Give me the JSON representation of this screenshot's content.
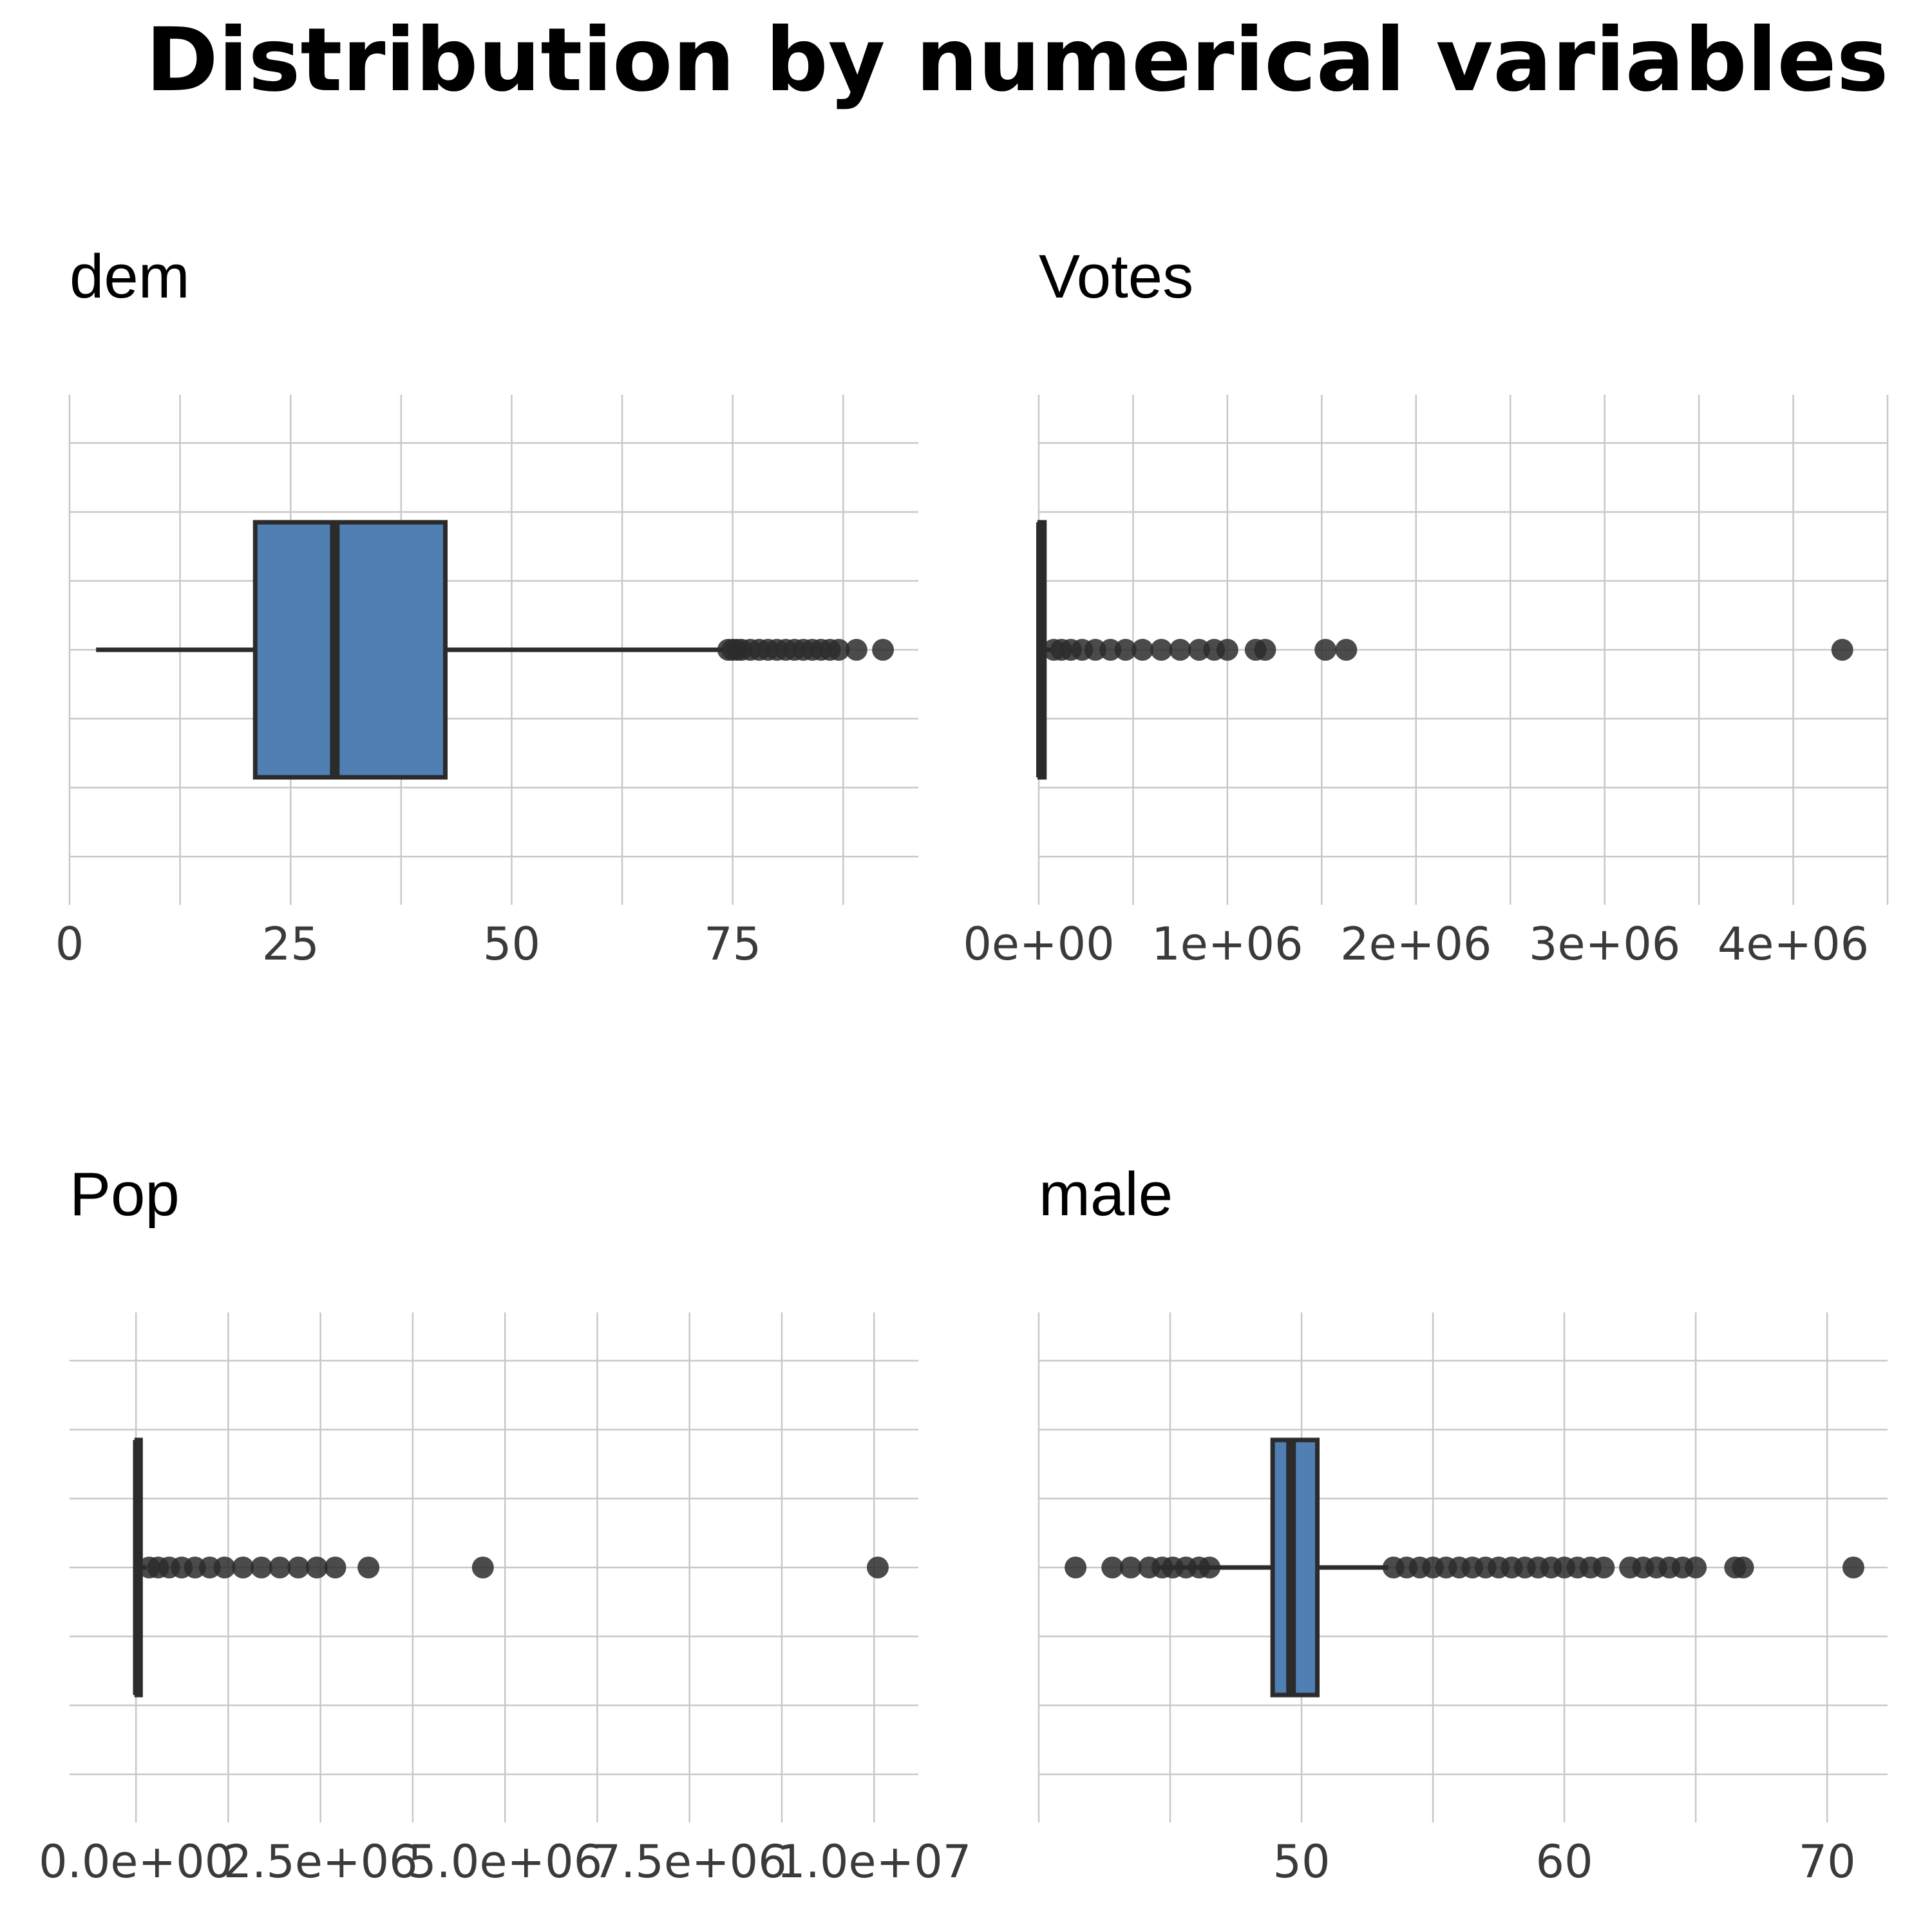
{
  "title": "Distribution by numerical variables",
  "chart_data": [
    {
      "type": "boxplot",
      "title": "dem",
      "xlim": [
        0,
        96
      ],
      "xticks": [
        0,
        25,
        50,
        75
      ],
      "xtick_labels": [
        "0",
        "25",
        "50",
        "75"
      ],
      "box": {
        "whisker_low": 3,
        "q1": 21,
        "median": 30,
        "q3": 42.5,
        "whisker_high": 74
      },
      "outliers": [
        74.5,
        75,
        75.5,
        76,
        77,
        78,
        79,
        80,
        81,
        82,
        83,
        84,
        85,
        86,
        87,
        89,
        92
      ]
    },
    {
      "type": "boxplot",
      "title": "Votes",
      "xlim": [
        0,
        4500000
      ],
      "xticks": [
        0,
        1000000,
        2000000,
        3000000,
        4000000
      ],
      "xtick_labels": [
        "0e+00",
        "1e+06",
        "2e+06",
        "3e+06",
        "4e+06"
      ],
      "box": {
        "whisker_low": 0,
        "q1": 5000,
        "median": 12000,
        "q3": 30000,
        "whisker_high": 70000
      },
      "outliers": [
        80000,
        120000,
        170000,
        230000,
        300000,
        380000,
        460000,
        550000,
        650000,
        750000,
        850000,
        930000,
        1000000,
        1150000,
        1200000,
        1520000,
        1630000,
        4260000
      ]
    },
    {
      "type": "boxplot",
      "title": "Pop",
      "xlim": [
        -900000,
        10600000
      ],
      "xticks": [
        0,
        2500000,
        5000000,
        7500000,
        10000000
      ],
      "xtick_labels": [
        "0.0e+00",
        "2.5e+06",
        "5.0e+06",
        "7.5e+06",
        "1.0e+07"
      ],
      "box": {
        "whisker_low": 0,
        "q1": 10000,
        "median": 25000,
        "q3": 60000,
        "whisker_high": 140000
      },
      "outliers": [
        180000,
        300000,
        450000,
        620000,
        800000,
        1000000,
        1200000,
        1450000,
        1700000,
        1950000,
        2200000,
        2450000,
        2700000,
        3150000,
        4700000,
        10050000
      ]
    },
    {
      "type": "boxplot",
      "title": "male",
      "xlim": [
        40,
        72.3
      ],
      "xticks": [
        50,
        60,
        70
      ],
      "xtick_labels": [
        "50",
        "60",
        "70"
      ],
      "box": {
        "whisker_low": 44.5,
        "q1": 48.9,
        "median": 49.6,
        "q3": 50.6,
        "whisker_high": 53.3
      },
      "outliers": [
        41.4,
        42.8,
        43.5,
        44.2,
        44.7,
        45.1,
        45.6,
        46.1,
        46.5,
        53.5,
        54,
        54.5,
        55,
        55.5,
        56,
        56.5,
        57,
        57.5,
        58,
        58.5,
        59,
        59.5,
        60,
        60.5,
        61,
        61.5,
        62.5,
        63,
        63.5,
        64,
        64.5,
        65,
        66.5,
        66.8,
        71
      ]
    }
  ]
}
